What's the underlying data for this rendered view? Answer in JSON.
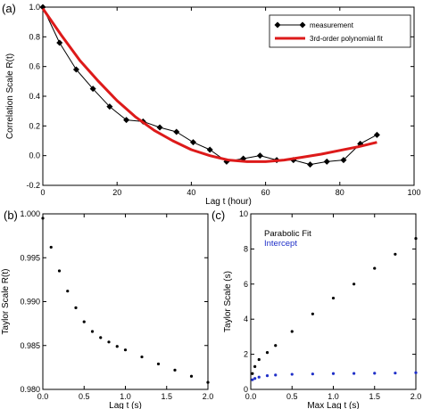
{
  "chart_data": [
    {
      "panel": "(a)",
      "type": "line",
      "xlabel": "Lag t (hour)",
      "ylabel": "Correlation Scale  R(t)",
      "xlim": [
        0,
        100
      ],
      "ylim": [
        -0.2,
        1.0
      ],
      "xticks": [
        "0",
        "20",
        "40",
        "60",
        "80",
        "100"
      ],
      "yticks": [
        "-0.2",
        "0.0",
        "0.2",
        "0.4",
        "0.6",
        "0.8",
        "1.0"
      ],
      "legend_position": "top-right",
      "series": [
        {
          "name": "measurement",
          "style": "line-diamond",
          "color": "#000000",
          "x": [
            0,
            4.5,
            9,
            13.5,
            18,
            22.5,
            27,
            31.5,
            36,
            40.5,
            45,
            49.5,
            54,
            58.5,
            63,
            67.5,
            72,
            76.5,
            81,
            85.5,
            90
          ],
          "y": [
            1.0,
            0.76,
            0.58,
            0.45,
            0.33,
            0.24,
            0.23,
            0.19,
            0.16,
            0.09,
            0.04,
            -0.04,
            -0.02,
            0.0,
            -0.03,
            -0.03,
            -0.06,
            -0.04,
            -0.03,
            0.08,
            0.14
          ]
        },
        {
          "name": "3rd-order polynomial fit",
          "style": "line",
          "color": "#dd1a1a",
          "x": [
            0,
            5,
            10,
            15,
            20,
            25,
            30,
            35,
            40,
            45,
            50,
            55,
            60,
            65,
            70,
            75,
            80,
            85,
            90
          ],
          "y": [
            0.99,
            0.81,
            0.64,
            0.5,
            0.37,
            0.26,
            0.17,
            0.1,
            0.04,
            0.0,
            -0.03,
            -0.04,
            -0.04,
            -0.03,
            -0.01,
            0.01,
            0.035,
            0.06,
            0.09
          ]
        }
      ]
    },
    {
      "panel": "(b)",
      "type": "scatter",
      "xlabel": "Lag t (s)",
      "ylabel": "Taylor Scale  R(t)",
      "xlim": [
        0,
        2.0
      ],
      "ylim": [
        0.98,
        1.0
      ],
      "xticks": [
        "0.0",
        "0.5",
        "1.0",
        "1.5",
        "2.0"
      ],
      "yticks": [
        "0.980",
        "0.985",
        "0.990",
        "0.995",
        "1.000"
      ],
      "series": [
        {
          "style": "dots",
          "color": "#000000",
          "x": [
            0,
            0.1,
            0.2,
            0.3,
            0.4,
            0.5,
            0.6,
            0.7,
            0.8,
            0.9,
            1.0,
            1.2,
            1.4,
            1.6,
            1.8,
            2.0
          ],
          "y": [
            0.9995,
            0.9962,
            0.9935,
            0.9912,
            0.9893,
            0.9877,
            0.9866,
            0.9859,
            0.9854,
            0.9849,
            0.9845,
            0.9837,
            0.9829,
            0.9822,
            0.9815,
            0.9808
          ]
        }
      ]
    },
    {
      "panel": "(c)",
      "type": "scatter",
      "xlabel": "Max Lag t (s)",
      "ylabel": "Taylor Scale (s)",
      "xlim": [
        0,
        2.0
      ],
      "ylim": [
        0,
        10
      ],
      "xticks": [
        "0.0",
        "0.5",
        "1.0",
        "1.5",
        "2.0"
      ],
      "yticks": [
        "0",
        "2",
        "4",
        "6",
        "8",
        "10"
      ],
      "legend_position": "top-left",
      "series": [
        {
          "name": "Parabolic Fit",
          "style": "dots",
          "color": "#000000",
          "x": [
            0.02,
            0.05,
            0.1,
            0.2,
            0.3,
            0.5,
            0.75,
            1.0,
            1.25,
            1.5,
            1.75,
            2.0
          ],
          "y": [
            0.9,
            1.3,
            1.7,
            2.1,
            2.5,
            3.3,
            4.3,
            5.2,
            6.0,
            6.9,
            7.7,
            8.6
          ]
        },
        {
          "name": "Intercept",
          "style": "dots",
          "color": "#1f2fc8",
          "x": [
            0.02,
            0.05,
            0.1,
            0.2,
            0.3,
            0.5,
            0.75,
            1.0,
            1.25,
            1.5,
            1.75,
            2.0
          ],
          "y": [
            0.55,
            0.62,
            0.7,
            0.78,
            0.82,
            0.86,
            0.88,
            0.9,
            0.91,
            0.92,
            0.93,
            0.95
          ]
        }
      ]
    }
  ]
}
